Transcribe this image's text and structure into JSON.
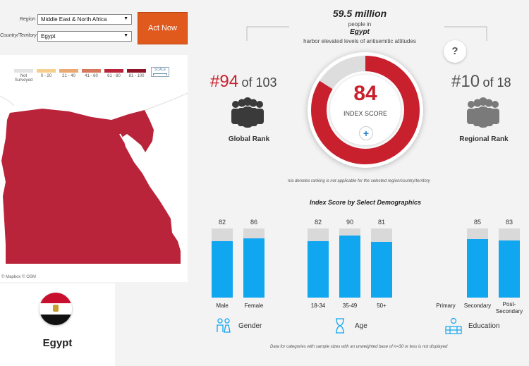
{
  "filters": {
    "region_label": "Region",
    "region_value": "Middle East & North Africa",
    "country_label": "Country/Territory",
    "country_value": "Egypt",
    "act_now_label": "Act Now"
  },
  "legend": {
    "items": [
      {
        "label": "Not Surveyed",
        "color": "#e3e3e3"
      },
      {
        "label": "0 - 20",
        "color": "#f5cf8e"
      },
      {
        "label": "21 - 40",
        "color": "#eaa972"
      },
      {
        "label": "41 - 60",
        "color": "#d7775e"
      },
      {
        "label": "61 - 80",
        "color": "#b9243a"
      },
      {
        "label": "81 - 100",
        "color": "#8f1326"
      }
    ],
    "scale_label": "SCALE"
  },
  "map": {
    "attribution": "© Mapbox  © OSM",
    "fill_color": "#b9243a"
  },
  "country_card": {
    "name": "Egypt",
    "flag_colors": [
      "#c8102e",
      "#ffffff",
      "#111111"
    ]
  },
  "population": {
    "number": "59.5 million",
    "line1": "people in",
    "country": "Egypt",
    "line2": "harbor elevated levels of antisemitic attitudes"
  },
  "help_label": "?",
  "global_rank": {
    "rank": "#94",
    "of_text": "of 103",
    "label": "Global Rank"
  },
  "regional_rank": {
    "rank": "#10",
    "of_text": "of 18",
    "label": "Regional Rank"
  },
  "index": {
    "score": "84",
    "score_value": 84,
    "label": "INDEX SCORE",
    "plus": "+"
  },
  "note": "n/a denotes ranking is not applicable for the selected region/country/territory",
  "demographics": {
    "title": "Index Score by Select Demographics",
    "gender": {
      "name": "Gender",
      "bars": [
        {
          "label": "Male",
          "value": 82
        },
        {
          "label": "Female",
          "value": 86
        }
      ]
    },
    "age": {
      "name": "Age",
      "bars": [
        {
          "label": "18-34",
          "value": 82
        },
        {
          "label": "35-49",
          "value": 90
        },
        {
          "label": "50+",
          "value": 81
        }
      ]
    },
    "education": {
      "name": "Education",
      "bars": [
        {
          "label": "Primary",
          "value": null
        },
        {
          "label": "Secondary",
          "value": 85
        },
        {
          "label": "Post-Secondary",
          "value": 83
        }
      ]
    }
  },
  "footnote": "Data for categories with sample sizes with an unweighted base of n=30 or less is not displayed",
  "colors": {
    "accent_red": "#c9202e",
    "bar_blue": "#11a6f0",
    "bar_bg": "#d9d9d9",
    "orange": "#e05a1e"
  }
}
